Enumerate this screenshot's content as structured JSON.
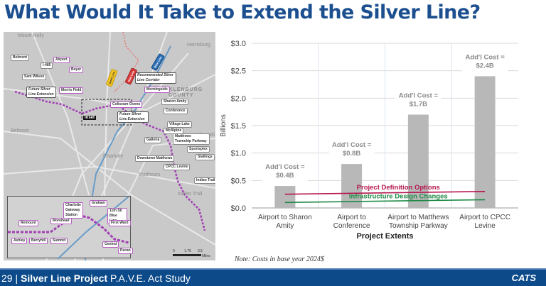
{
  "title": "What Would It Take to Extend the Silver Line?",
  "map": {
    "places": [
      "Mount Holly",
      "Harrisburg",
      "MECKLENBURG",
      "COUNTY",
      "Belmont",
      "Mint Hill",
      "Charlotte",
      "Matthews",
      "Indian Trail"
    ],
    "stations": [
      "Belmont",
      "I-485",
      "Sam Wilson",
      "Airport",
      "Boyer",
      "Morris Field",
      "Morningside",
      "Coliseum Ovens",
      "Sharon Amity",
      "Conference",
      "Village Lake",
      "McAlpine",
      "Galleria",
      "Matthews Township Parkway",
      "Sportsplex",
      "Downtown Matthews",
      "Stallings",
      "CPCC Levine",
      "Indian Trail"
    ],
    "callouts": [
      "Future Silver Line Extension",
      "Recommended Silver Line Corridor",
      "Future Silver Line Extension"
    ],
    "inset_label": "Inset",
    "inset_stations": [
      "Charlotte Gateway Station",
      "Graham",
      "11th St/ Blue Line",
      "Morehead",
      "Remount",
      "First Ward",
      "Ashley",
      "Berryhill",
      "Summit",
      "Central",
      "Pecan"
    ],
    "lines": [
      "Gold Line",
      "Blue Line",
      "Red Line"
    ],
    "interstates": [
      "485",
      "85",
      "77",
      "85",
      "485",
      "77",
      "485",
      "277"
    ],
    "scale": [
      "0",
      "1.75",
      "3.5",
      "Miles"
    ]
  },
  "chart_data": {
    "type": "bar",
    "categories": [
      "Airport to Sharon Amity",
      "Airport to Conference",
      "Airport to Matthews Township Parkway",
      "Airport to CPCC Levine"
    ],
    "category_lines": [
      [
        "Airport to Sharon",
        "Amity"
      ],
      [
        "Airport to",
        "Conference"
      ],
      [
        "Airport to Matthews",
        "Township Parkway"
      ],
      [
        "Airport to CPCC",
        "Levine"
      ]
    ],
    "values": [
      0.4,
      0.8,
      1.7,
      2.4
    ],
    "data_labels": [
      [
        "Add'l Cost =",
        "$0.4B"
      ],
      [
        "Add'l Cost =",
        "$0.8B"
      ],
      [
        "Add'l Cost =",
        "$1.7B"
      ],
      [
        "Add'l Cost =",
        "$2.4B"
      ]
    ],
    "xlabel": "Project Extents",
    "ylabel": "Billions",
    "ylim": [
      0,
      3.0
    ],
    "yticks": [
      "$0.0",
      "$0.5",
      "$1.0",
      "$1.5",
      "$2.0",
      "$2.5",
      "$3.0"
    ],
    "grid": true,
    "bar_color": "#b8b8b8",
    "series_lines": [
      {
        "name": "Project Definition Options",
        "color": "#b5164f",
        "values": [
          0.25,
          0.3
        ]
      },
      {
        "name": "Infrastructure Design Changes",
        "color": "#1e8a45",
        "values": [
          0.1,
          0.15
        ]
      }
    ]
  },
  "note": "Note: Costs in base year 2024$",
  "footer": {
    "page": "29 | ",
    "project": "Silver Line Project",
    "study": " P.A.V.E. Act Study",
    "logo": "CATS"
  }
}
